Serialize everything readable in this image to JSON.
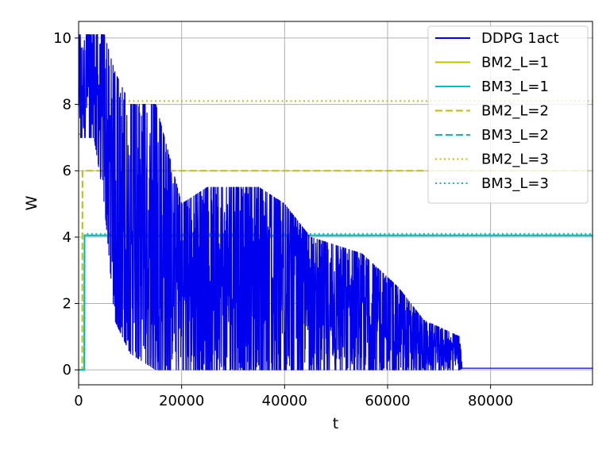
{
  "chart_data": {
    "type": "line",
    "xlabel": "t",
    "ylabel": "W",
    "xlim": [
      0,
      99800
    ],
    "ylim": [
      -0.45,
      10.5
    ],
    "xticks": [
      0,
      20000,
      40000,
      60000,
      80000
    ],
    "yticks": [
      0,
      2,
      4,
      6,
      8,
      10
    ],
    "grid": true,
    "legend_position": "top-right",
    "series": [
      {
        "name": "DDPG 1act",
        "color": "#0000ee",
        "style": "solid",
        "kind": "noisy",
        "band": [
          {
            "x": 0,
            "low": 7.0,
            "high": 10.1
          },
          {
            "x": 3000,
            "low": 7.0,
            "high": 10.1
          },
          {
            "x": 5000,
            "low": 5.0,
            "high": 10.1
          },
          {
            "x": 7000,
            "low": 1.5,
            "high": 9.0
          },
          {
            "x": 10000,
            "low": 0.5,
            "high": 8.0
          },
          {
            "x": 15000,
            "low": 0.0,
            "high": 8.0
          },
          {
            "x": 20000,
            "low": 0.0,
            "high": 5.0
          },
          {
            "x": 25000,
            "low": 0.0,
            "high": 5.5
          },
          {
            "x": 35000,
            "low": 0.0,
            "high": 5.5
          },
          {
            "x": 40000,
            "low": 0.0,
            "high": 5.0
          },
          {
            "x": 45000,
            "low": 0.0,
            "high": 4.0
          },
          {
            "x": 55000,
            "low": 0.0,
            "high": 3.5
          },
          {
            "x": 62000,
            "low": 0.0,
            "high": 2.5
          },
          {
            "x": 67000,
            "low": 0.0,
            "high": 1.5
          },
          {
            "x": 74000,
            "low": 0.0,
            "high": 1.0
          },
          {
            "x": 74500,
            "low": 0.05,
            "high": 0.05
          },
          {
            "x": 99800,
            "low": 0.05,
            "high": 0.05
          }
        ]
      },
      {
        "name": "BM2_L=1",
        "color": "#bfbf00",
        "style": "solid",
        "kind": "step",
        "points": [
          [
            0,
            0
          ],
          [
            1100,
            0
          ],
          [
            1150,
            4.05
          ],
          [
            99800,
            4.05
          ]
        ]
      },
      {
        "name": "BM3_L=1",
        "color": "#00bfbf",
        "style": "solid",
        "kind": "step",
        "points": [
          [
            0,
            0
          ],
          [
            1100,
            0
          ],
          [
            1150,
            4.05
          ],
          [
            99800,
            4.05
          ]
        ]
      },
      {
        "name": "BM2_L=2",
        "color": "#bfbf00",
        "style": "dashed",
        "kind": "step",
        "points": [
          [
            0,
            0
          ],
          [
            700,
            0
          ],
          [
            750,
            6.0
          ],
          [
            99800,
            6.0
          ]
        ]
      },
      {
        "name": "BM3_L=2",
        "color": "#00bfbf",
        "style": "dashed",
        "kind": "step",
        "points": [
          [
            0,
            0
          ],
          [
            1100,
            0
          ],
          [
            1150,
            4.05
          ],
          [
            99800,
            4.05
          ]
        ]
      },
      {
        "name": "BM2_L=3",
        "color": "#bfbf00",
        "style": "dotted",
        "kind": "step",
        "points": [
          [
            0,
            7.1
          ],
          [
            500,
            7.1
          ],
          [
            550,
            8.1
          ],
          [
            99800,
            8.1
          ]
        ]
      },
      {
        "name": "BM3_L=3",
        "color": "#00bfbf",
        "style": "dotted",
        "kind": "step",
        "points": [
          [
            0,
            0
          ],
          [
            1100,
            0
          ],
          [
            1150,
            4.1
          ],
          [
            99800,
            4.1
          ]
        ]
      }
    ]
  }
}
